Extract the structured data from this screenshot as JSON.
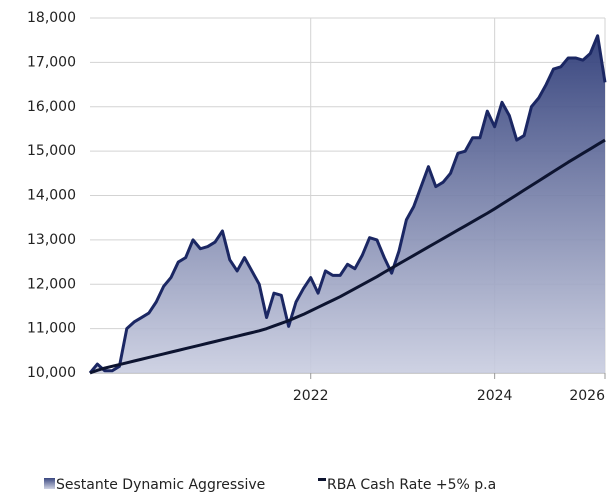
{
  "chart_data": {
    "type": "line",
    "categories": [
      null,
      null,
      null,
      null,
      null,
      null,
      null,
      null,
      null,
      null,
      null,
      null,
      null,
      null,
      null,
      null,
      null,
      null,
      null,
      null,
      null,
      null,
      null,
      null,
      null,
      null,
      null,
      null,
      null,
      null,
      "2022",
      null,
      null,
      null,
      null,
      null,
      null,
      null,
      null,
      null,
      null,
      null,
      null,
      null,
      null,
      null,
      null,
      null,
      null,
      null,
      null,
      null,
      null,
      null,
      null,
      "2024",
      null,
      null,
      null,
      null,
      null,
      null,
      null,
      null,
      null,
      null,
      null,
      null,
      null,
      null,
      "2026"
    ],
    "series": [
      {
        "name": "Sestante Dynamic Aggressive",
        "color": "#1b2763",
        "fill": true,
        "values": [
          10000,
          10200,
          10050,
          10050,
          10150,
          11000,
          11150,
          11250,
          11350,
          11600,
          11950,
          12150,
          12500,
          12600,
          13000,
          12800,
          12850,
          12950,
          13200,
          12550,
          12300,
          12600,
          12300,
          12000,
          11250,
          11800,
          11750,
          11050,
          11600,
          11900,
          12150,
          11800,
          12300,
          12200,
          12200,
          12450,
          12350,
          12650,
          13050,
          13000,
          12600,
          12250,
          12750,
          13450,
          13750,
          14200,
          14650,
          14200,
          14300,
          14500,
          14950,
          15000,
          15300,
          15300,
          15900,
          15550,
          16100,
          15800,
          15250,
          15350,
          16000,
          16200,
          16500,
          16850,
          16900,
          17100,
          17100,
          17050,
          17200,
          17600,
          16550
        ]
      },
      {
        "name": "RBA Cash Rate +5% p.a",
        "color": "#0d1430",
        "fill": false,
        "values": [
          10000,
          10060,
          10110,
          10150,
          10190,
          10230,
          10270,
          10310,
          10350,
          10390,
          10430,
          10470,
          10510,
          10550,
          10590,
          10630,
          10670,
          10710,
          10750,
          10790,
          10830,
          10870,
          10910,
          10950,
          11000,
          11060,
          11120,
          11180,
          11250,
          11320,
          11400,
          11480,
          11560,
          11640,
          11720,
          11810,
          11900,
          11990,
          12080,
          12170,
          12270,
          12365,
          12460,
          12555,
          12650,
          12745,
          12840,
          12935,
          13030,
          13125,
          13220,
          13315,
          13410,
          13505,
          13600,
          13700,
          13805,
          13910,
          14015,
          14120,
          14225,
          14330,
          14435,
          14540,
          14645,
          14750,
          14850,
          14950,
          15050,
          15150,
          15250
        ]
      }
    ],
    "ylim": [
      10000,
      18000
    ],
    "yticks": [
      {
        "value": 10000,
        "label": "10,000"
      },
      {
        "value": 11000,
        "label": "11,000"
      },
      {
        "value": 12000,
        "label": "12,000"
      },
      {
        "value": 13000,
        "label": "13,000"
      },
      {
        "value": 14000,
        "label": "14,000"
      },
      {
        "value": 15000,
        "label": "15,000"
      },
      {
        "value": 16000,
        "label": "16,000"
      },
      {
        "value": 17000,
        "label": "17,000"
      },
      {
        "value": 18000,
        "label": "18,000"
      }
    ],
    "grid": true,
    "legend": "bottom"
  }
}
